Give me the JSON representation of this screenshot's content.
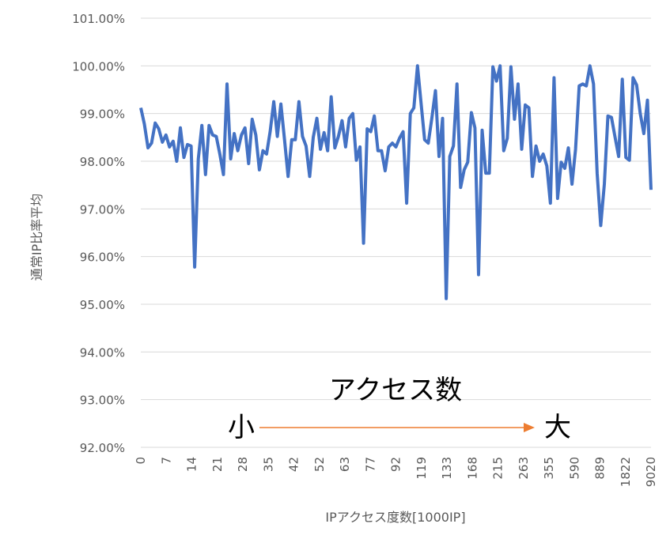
{
  "chart_data": {
    "type": "line",
    "ylabel": "通常IP比率平均",
    "xlabel": "IPアクセス度数[1000IP]",
    "ylim": [
      0.92,
      1.01
    ],
    "y_ticks": [
      "92.00%",
      "93.00%",
      "94.00%",
      "95.00%",
      "96.00%",
      "97.00%",
      "98.00%",
      "99.00%",
      "100.00%",
      "101.00%"
    ],
    "x_tick_labels": [
      "0",
      "7",
      "14",
      "21",
      "28",
      "35",
      "42",
      "52",
      "63",
      "77",
      "92",
      "119",
      "133",
      "168",
      "215",
      "263",
      "355",
      "590",
      "889",
      "1822",
      "9020"
    ],
    "grid": true,
    "series": [
      {
        "color": "#4472C4",
        "values": [
          0.9912,
          0.9878,
          0.9828,
          0.9838,
          0.988,
          0.9868,
          0.984,
          0.9855,
          0.983,
          0.9842,
          0.98,
          0.987,
          0.9808,
          0.9835,
          0.9832,
          0.9578,
          0.9805,
          0.9875,
          0.9772,
          0.9875,
          0.9855,
          0.9852,
          0.9815,
          0.9772,
          0.9962,
          0.9805,
          0.9858,
          0.9822,
          0.9855,
          0.987,
          0.9795,
          0.9888,
          0.9855,
          0.9782,
          0.9822,
          0.9815,
          0.9862,
          0.9925,
          0.9852,
          0.992,
          0.9845,
          0.9768,
          0.9845,
          0.9845,
          0.9925,
          0.9852,
          0.9832,
          0.9768,
          0.985,
          0.989,
          0.9825,
          0.986,
          0.9822,
          0.9935,
          0.9828,
          0.9852,
          0.9885,
          0.983,
          0.989,
          0.99,
          0.9802,
          0.983,
          0.9628,
          0.9868,
          0.9862,
          0.9895,
          0.9822,
          0.9822,
          0.978,
          0.983,
          0.9838,
          0.983,
          0.9848,
          0.9862,
          0.9712,
          0.99,
          0.9912,
          1.0,
          0.9922,
          0.9845,
          0.9838,
          0.989,
          0.9948,
          0.981,
          0.989,
          0.9512,
          0.981,
          0.9832,
          0.9962,
          0.9745,
          0.9782,
          0.9798,
          0.9902,
          0.987,
          0.9562,
          0.9865,
          0.9775,
          0.9775,
          0.9998,
          0.9968,
          1.0,
          0.9822,
          0.9848,
          0.9998,
          0.9888,
          0.9962,
          0.9825,
          0.9918,
          0.9912,
          0.9768,
          0.9832,
          0.98,
          0.9815,
          0.979,
          0.9712,
          0.9975,
          0.9722,
          0.9798,
          0.9785,
          0.9828,
          0.9752,
          0.9825,
          0.9958,
          0.9962,
          0.9958,
          1.0,
          0.9962,
          0.9775,
          0.9665,
          0.9752,
          0.9895,
          0.9892,
          0.985,
          0.981,
          0.9972,
          0.9808,
          0.9802,
          0.9975,
          0.996,
          0.99,
          0.9858,
          0.9928,
          0.974
        ]
      }
    ],
    "annotations": {
      "title_text": "アクセス数",
      "left_label": "小",
      "right_label": "大",
      "arrow_color": "#ED7D31"
    }
  }
}
